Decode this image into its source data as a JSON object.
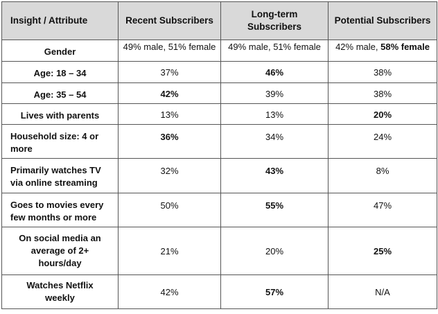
{
  "headers": [
    "Insight / Attribute",
    "Recent Subscribers",
    "Long-term Subscribers",
    "Potential Subscribers"
  ],
  "rows": [
    {
      "attribute": "Gender",
      "recent": "49% male, 51% female",
      "longterm": "49% male, 51% female",
      "potential_a": "42% male, ",
      "potential_b": "58% female"
    },
    {
      "attribute": "Age: 18 – 34",
      "recent": "37%",
      "longterm": "46%",
      "potential": "38%"
    },
    {
      "attribute": "Age: 35 – 54",
      "recent": "42%",
      "longterm": "39%",
      "potential": "38%"
    },
    {
      "attribute": "Lives with parents",
      "recent": "13%",
      "longterm": "13%",
      "potential": "20%"
    },
    {
      "attribute": "Household size: 4 or more",
      "recent": "36%",
      "longterm": "34%",
      "potential": "24%"
    },
    {
      "attribute": "Primarily watches TV via online streaming",
      "recent": "32%",
      "longterm": "43%",
      "potential": "8%"
    },
    {
      "attribute": "Goes to movies every few months or more",
      "recent": "50%",
      "longterm": "55%",
      "potential": "47%"
    },
    {
      "attribute": "On social media an average of 2+ hours/day",
      "recent": "21%",
      "longterm": "20%",
      "potential": "25%"
    },
    {
      "attribute": "Watches Netflix weekly",
      "recent": "42%",
      "longterm": "57%",
      "potential": "N/A"
    }
  ]
}
